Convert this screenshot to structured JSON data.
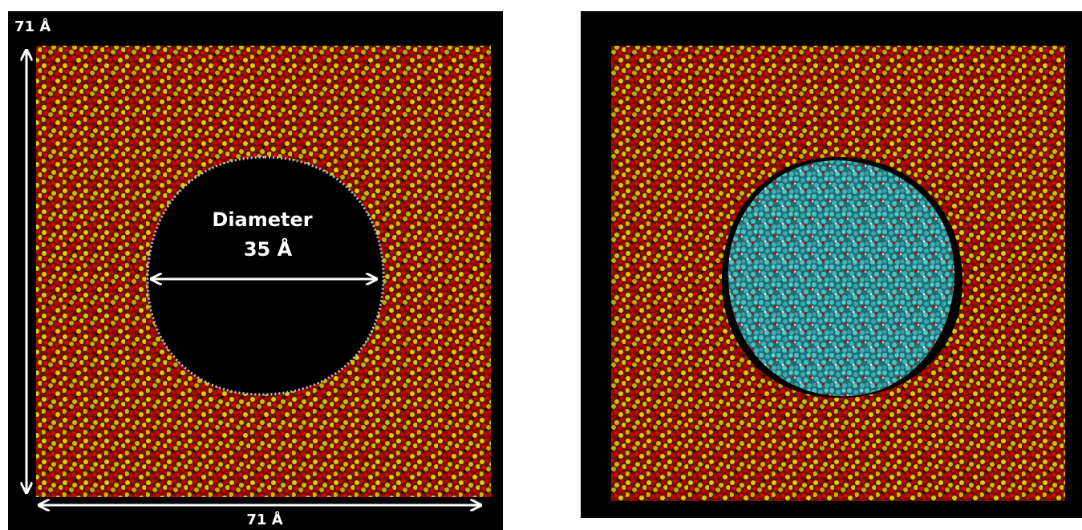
{
  "left_panel": {
    "height_label": "71 Å",
    "width_label": "71 Å",
    "diameter_label": "Diameter",
    "diameter_value": "35 Å"
  }
}
